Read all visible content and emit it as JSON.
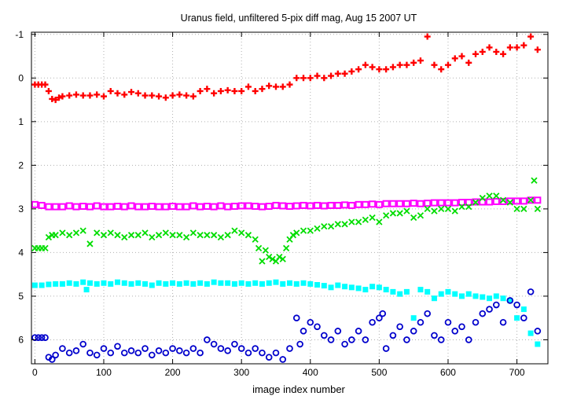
{
  "chart_data": {
    "type": "scatter",
    "title": "Uranus field, unfiltered 5-pix diff mag, Aug 15 2007 UT",
    "xlabel": "image index number",
    "ylabel": "",
    "xlim": [
      -5,
      745
    ],
    "ylim": [
      6.55,
      -1.05
    ],
    "y_inverted": true,
    "grid": true,
    "x_ticks": [
      0,
      100,
      200,
      300,
      400,
      500,
      600,
      700
    ],
    "y_ticks": [
      -1,
      0,
      1,
      2,
      3,
      4,
      5,
      6
    ],
    "x_tick_labels": [
      "0",
      "100",
      "200",
      "300",
      "400",
      "500",
      "600",
      "700"
    ],
    "y_tick_labels": [
      "-1",
      "0",
      "1",
      "2",
      "3",
      "4",
      "5",
      "6"
    ],
    "series": [
      {
        "marker": "plus",
        "color": "#ff0000",
        "x": [
          0,
          5,
          10,
          15,
          20,
          25,
          30,
          35,
          40,
          50,
          60,
          70,
          80,
          90,
          100,
          110,
          120,
          130,
          140,
          150,
          160,
          170,
          180,
          190,
          200,
          210,
          220,
          230,
          240,
          250,
          260,
          270,
          280,
          290,
          300,
          310,
          320,
          330,
          340,
          350,
          360,
          370,
          380,
          390,
          400,
          410,
          420,
          430,
          440,
          450,
          460,
          470,
          480,
          490,
          500,
          510,
          520,
          530,
          540,
          550,
          560,
          570,
          580,
          590,
          600,
          610,
          620,
          630,
          640,
          650,
          660,
          670,
          680,
          690,
          700,
          710,
          720,
          730
        ],
        "y": [
          0.15,
          0.15,
          0.15,
          0.15,
          0.3,
          0.48,
          0.5,
          0.45,
          0.42,
          0.4,
          0.38,
          0.4,
          0.4,
          0.38,
          0.42,
          0.3,
          0.35,
          0.38,
          0.32,
          0.35,
          0.4,
          0.4,
          0.42,
          0.45,
          0.4,
          0.38,
          0.4,
          0.42,
          0.3,
          0.25,
          0.35,
          0.3,
          0.28,
          0.3,
          0.3,
          0.2,
          0.3,
          0.25,
          0.18,
          0.2,
          0.2,
          0.15,
          0.0,
          0.0,
          0.0,
          -0.05,
          0.0,
          -0.05,
          -0.1,
          -0.1,
          -0.15,
          -0.2,
          -0.3,
          -0.25,
          -0.2,
          -0.2,
          -0.25,
          -0.3,
          -0.3,
          -0.35,
          -0.4,
          -0.95,
          -0.3,
          -0.2,
          -0.3,
          -0.45,
          -0.5,
          -0.35,
          -0.55,
          -0.6,
          -0.7,
          -0.6,
          -0.55,
          -0.7,
          -0.7,
          -0.75,
          -0.95,
          -0.65
        ]
      },
      {
        "marker": "open-square",
        "color": "#ff00ff",
        "x": [
          0,
          10,
          20,
          30,
          40,
          50,
          60,
          70,
          80,
          90,
          100,
          110,
          120,
          130,
          140,
          150,
          160,
          170,
          180,
          190,
          200,
          210,
          220,
          230,
          240,
          250,
          260,
          270,
          280,
          290,
          300,
          310,
          320,
          330,
          340,
          350,
          360,
          370,
          380,
          390,
          400,
          410,
          420,
          430,
          440,
          450,
          460,
          470,
          480,
          490,
          500,
          510,
          520,
          530,
          540,
          550,
          560,
          570,
          580,
          590,
          600,
          610,
          620,
          630,
          640,
          650,
          660,
          670,
          680,
          690,
          700,
          710,
          720,
          730
        ],
        "y": [
          2.9,
          2.92,
          2.95,
          2.95,
          2.95,
          2.93,
          2.95,
          2.94,
          2.95,
          2.93,
          2.95,
          2.95,
          2.94,
          2.95,
          2.93,
          2.95,
          2.95,
          2.94,
          2.95,
          2.95,
          2.94,
          2.95,
          2.95,
          2.93,
          2.95,
          2.94,
          2.95,
          2.93,
          2.95,
          2.94,
          2.93,
          2.93,
          2.94,
          2.95,
          2.94,
          2.92,
          2.93,
          2.94,
          2.93,
          2.92,
          2.93,
          2.92,
          2.93,
          2.92,
          2.92,
          2.91,
          2.92,
          2.9,
          2.9,
          2.89,
          2.9,
          2.88,
          2.88,
          2.88,
          2.88,
          2.87,
          2.88,
          2.87,
          2.86,
          2.86,
          2.86,
          2.86,
          2.85,
          2.85,
          2.84,
          2.84,
          2.84,
          2.83,
          2.83,
          2.82,
          2.82,
          2.82,
          2.8,
          2.8
        ]
      },
      {
        "marker": "x",
        "color": "#00dd00",
        "x": [
          0,
          5,
          10,
          15,
          20,
          25,
          30,
          40,
          50,
          60,
          70,
          80,
          90,
          100,
          110,
          120,
          130,
          140,
          150,
          160,
          170,
          180,
          190,
          200,
          210,
          220,
          230,
          240,
          250,
          260,
          270,
          280,
          290,
          300,
          310,
          320,
          325,
          330,
          335,
          340,
          345,
          350,
          355,
          360,
          365,
          370,
          375,
          380,
          390,
          400,
          410,
          420,
          430,
          440,
          450,
          460,
          470,
          480,
          490,
          500,
          510,
          520,
          530,
          540,
          550,
          560,
          570,
          580,
          590,
          600,
          610,
          620,
          630,
          640,
          650,
          660,
          670,
          680,
          690,
          700,
          710,
          720,
          725,
          730
        ],
        "y": [
          3.9,
          3.9,
          3.9,
          3.9,
          3.65,
          3.6,
          3.6,
          3.55,
          3.6,
          3.55,
          3.5,
          3.8,
          3.55,
          3.6,
          3.55,
          3.6,
          3.65,
          3.6,
          3.6,
          3.55,
          3.65,
          3.6,
          3.55,
          3.6,
          3.6,
          3.65,
          3.55,
          3.6,
          3.6,
          3.6,
          3.65,
          3.6,
          3.5,
          3.55,
          3.6,
          3.7,
          3.9,
          4.2,
          3.95,
          4.1,
          4.15,
          4.2,
          4.1,
          4.15,
          3.9,
          3.7,
          3.6,
          3.55,
          3.5,
          3.5,
          3.45,
          3.4,
          3.4,
          3.35,
          3.35,
          3.3,
          3.3,
          3.25,
          3.2,
          3.3,
          3.15,
          3.1,
          3.1,
          3.05,
          3.2,
          3.15,
          3.0,
          3.05,
          3.0,
          3.0,
          3.05,
          2.95,
          2.95,
          2.85,
          2.75,
          2.7,
          2.7,
          2.8,
          2.85,
          3.0,
          3.0,
          2.8,
          2.35,
          3.0
        ]
      },
      {
        "marker": "filled-square",
        "color": "#00ffff",
        "x": [
          0,
          10,
          20,
          30,
          40,
          50,
          60,
          70,
          75,
          80,
          90,
          100,
          110,
          120,
          130,
          140,
          150,
          160,
          170,
          180,
          190,
          200,
          210,
          220,
          230,
          240,
          250,
          260,
          270,
          280,
          290,
          300,
          310,
          320,
          330,
          340,
          350,
          360,
          370,
          380,
          390,
          400,
          410,
          420,
          430,
          440,
          450,
          460,
          470,
          480,
          490,
          500,
          510,
          520,
          530,
          540,
          550,
          560,
          570,
          580,
          590,
          600,
          610,
          620,
          630,
          640,
          650,
          660,
          670,
          680,
          690,
          700,
          710,
          720,
          730
        ],
        "y": [
          4.75,
          4.75,
          4.73,
          4.72,
          4.72,
          4.7,
          4.72,
          4.68,
          4.85,
          4.7,
          4.72,
          4.7,
          4.72,
          4.68,
          4.7,
          4.72,
          4.7,
          4.72,
          4.75,
          4.7,
          4.72,
          4.7,
          4.72,
          4.7,
          4.72,
          4.7,
          4.72,
          4.68,
          4.7,
          4.7,
          4.72,
          4.7,
          4.72,
          4.7,
          4.72,
          4.7,
          4.68,
          4.72,
          4.7,
          4.72,
          4.7,
          4.72,
          4.74,
          4.76,
          4.8,
          4.75,
          4.78,
          4.8,
          4.82,
          4.85,
          4.78,
          4.8,
          4.85,
          4.9,
          4.95,
          4.9,
          5.5,
          4.85,
          4.9,
          5.05,
          4.95,
          4.9,
          4.95,
          5.0,
          4.95,
          5.0,
          5.02,
          5.05,
          5.0,
          5.05,
          5.1,
          5.5,
          5.3,
          5.85,
          6.1
        ]
      },
      {
        "marker": "open-circle",
        "color": "#0000cc",
        "x": [
          0,
          5,
          10,
          15,
          20,
          25,
          30,
          40,
          50,
          60,
          70,
          80,
          90,
          100,
          110,
          120,
          130,
          140,
          150,
          160,
          170,
          180,
          190,
          200,
          210,
          220,
          230,
          240,
          250,
          260,
          270,
          280,
          290,
          300,
          310,
          320,
          330,
          340,
          350,
          360,
          370,
          380,
          385,
          390,
          400,
          410,
          420,
          430,
          440,
          450,
          460,
          470,
          480,
          490,
          500,
          505,
          510,
          520,
          530,
          540,
          550,
          560,
          570,
          580,
          590,
          600,
          610,
          620,
          630,
          640,
          650,
          660,
          670,
          680,
          690,
          700,
          710,
          720,
          730
        ],
        "y": [
          5.95,
          5.95,
          5.95,
          5.95,
          6.4,
          6.45,
          6.35,
          6.2,
          6.3,
          6.25,
          6.1,
          6.3,
          6.35,
          6.2,
          6.3,
          6.15,
          6.3,
          6.25,
          6.3,
          6.2,
          6.35,
          6.25,
          6.3,
          6.2,
          6.25,
          6.3,
          6.2,
          6.3,
          6.0,
          6.1,
          6.2,
          6.25,
          6.1,
          6.2,
          6.3,
          6.2,
          6.3,
          6.4,
          6.3,
          6.45,
          6.2,
          5.5,
          6.1,
          5.8,
          5.6,
          5.7,
          5.9,
          6.0,
          5.8,
          6.1,
          6.0,
          5.8,
          6.0,
          5.6,
          5.5,
          5.4,
          6.2,
          5.9,
          5.7,
          6.0,
          5.8,
          5.6,
          5.4,
          5.9,
          6.0,
          5.6,
          5.8,
          5.7,
          6.0,
          5.6,
          5.4,
          5.3,
          5.2,
          5.6,
          5.1,
          5.2,
          5.5,
          4.9,
          5.8
        ]
      }
    ]
  }
}
